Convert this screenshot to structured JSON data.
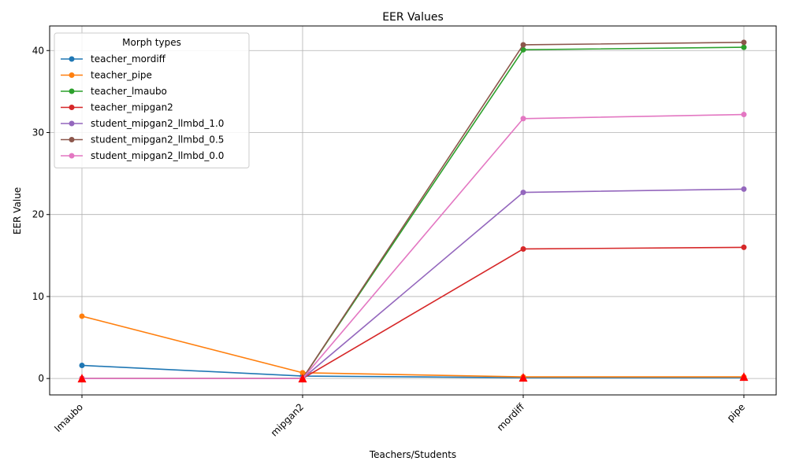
{
  "chart_data": {
    "type": "line",
    "title": "EER Values",
    "xlabel": "Teachers/Students",
    "ylabel": "EER Value",
    "categories": [
      "lmaubo",
      "mipgan2",
      "mordiff",
      "pipe"
    ],
    "ylim": [
      -2,
      43
    ],
    "yticks": [
      0,
      10,
      20,
      30,
      40
    ],
    "grid": true,
    "legend": {
      "title": "Morph types",
      "placement": "top-left"
    },
    "series": [
      {
        "name": "teacher_mordiff",
        "color": "#1f77b4",
        "values": [
          1.6,
          0.3,
          0.1,
          0.1
        ]
      },
      {
        "name": "teacher_pipe",
        "color": "#ff7f0e",
        "values": [
          7.6,
          0.7,
          0.2,
          0.2
        ]
      },
      {
        "name": "teacher_lmaubo",
        "color": "#2ca02c",
        "values": [
          0.0,
          0.0,
          40.1,
          40.4
        ]
      },
      {
        "name": "teacher_mipgan2",
        "color": "#d62728",
        "values": [
          0.0,
          0.0,
          15.8,
          16.0
        ]
      },
      {
        "name": "student_mipgan2_llmbd_1.0",
        "color": "#9467bd",
        "values": [
          0.0,
          0.0,
          22.7,
          23.1
        ]
      },
      {
        "name": "student_mipgan2_llmbd_0.5",
        "color": "#8c564b",
        "values": [
          0.0,
          0.0,
          40.7,
          41.0
        ]
      },
      {
        "name": "student_mipgan2_llmbd_0.0",
        "color": "#e377c2",
        "values": [
          0.0,
          0.0,
          31.7,
          32.2
        ]
      }
    ],
    "highlight_markers": {
      "color": "#ff0000",
      "shape": "triangle",
      "values": [
        0.0,
        0.0,
        0.1,
        0.2
      ]
    }
  }
}
